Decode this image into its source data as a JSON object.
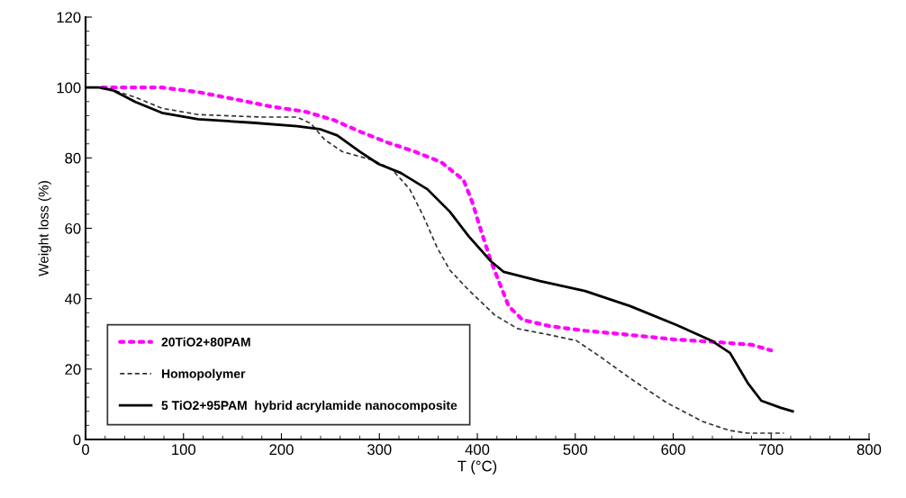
{
  "chart_data": {
    "type": "line",
    "xlabel": "T (°C)",
    "ylabel": "Weight loss (%)",
    "xlim": [
      0,
      800
    ],
    "xticks": [
      0,
      100,
      200,
      300,
      400,
      500,
      600,
      700,
      800
    ],
    "ylim": [
      0,
      120
    ],
    "yticks": [
      0,
      20,
      40,
      60,
      80,
      100,
      120
    ],
    "grid": false,
    "legend": "bottom left",
    "series": [
      {
        "name": "20TiO2+80PAM",
        "color": "#ff00ff",
        "line_style": "dotted",
        "x": [
          17,
          51,
          78,
          115,
          152,
          189,
          225,
          253,
          280,
          308,
          336,
          363,
          386,
          395,
          405,
          414,
          423,
          432,
          446,
          474,
          510,
          556,
          602,
          648,
          680,
          700
        ],
        "values": [
          100,
          100,
          100,
          98.7,
          96.7,
          94.6,
          93.1,
          90.8,
          87.5,
          84.4,
          81.8,
          78.8,
          73.7,
          67.3,
          58.3,
          50.6,
          44.2,
          37.9,
          34,
          32.2,
          30.9,
          29.7,
          28.4,
          27.6,
          26.9,
          25.3
        ]
      },
      {
        "name": "Homopolymer",
        "color": "#333333",
        "line_style": "dashed",
        "x": [
          23,
          51,
          78,
          115,
          179,
          216,
          230,
          244,
          262,
          294,
          313,
          331,
          345,
          359,
          372,
          391,
          418,
          441,
          474,
          501,
          524,
          556,
          593,
          630,
          657,
          676,
          713
        ],
        "values": [
          99.7,
          97.2,
          94.1,
          92.3,
          91.6,
          91.6,
          89.8,
          85.2,
          81.8,
          79.3,
          76.7,
          71.1,
          63.4,
          54.5,
          48.1,
          42.5,
          35.3,
          31.5,
          29.7,
          28.1,
          23.8,
          17.4,
          10.5,
          5.1,
          2.6,
          1.8,
          1.8
        ]
      },
      {
        "name": "5 TiO2+95PAM  hybrid acrylamide nanocomposite",
        "color": "#000000",
        "line_style": "solid",
        "x": [
          0,
          14,
          28,
          51,
          78,
          115,
          170,
          216,
          239,
          257,
          280,
          299,
          322,
          349,
          372,
          391,
          414,
          427,
          464,
          510,
          556,
          602,
          639,
          658,
          676,
          690,
          710,
          722
        ],
        "values": [
          100,
          100,
          99.2,
          95.9,
          92.8,
          91,
          90,
          89,
          88.2,
          86.4,
          81.8,
          78.3,
          75.7,
          71.1,
          64.7,
          57.8,
          50.6,
          47.6,
          45,
          42.2,
          37.9,
          32.7,
          28.1,
          24.6,
          16.1,
          11,
          9,
          8
        ]
      }
    ]
  }
}
